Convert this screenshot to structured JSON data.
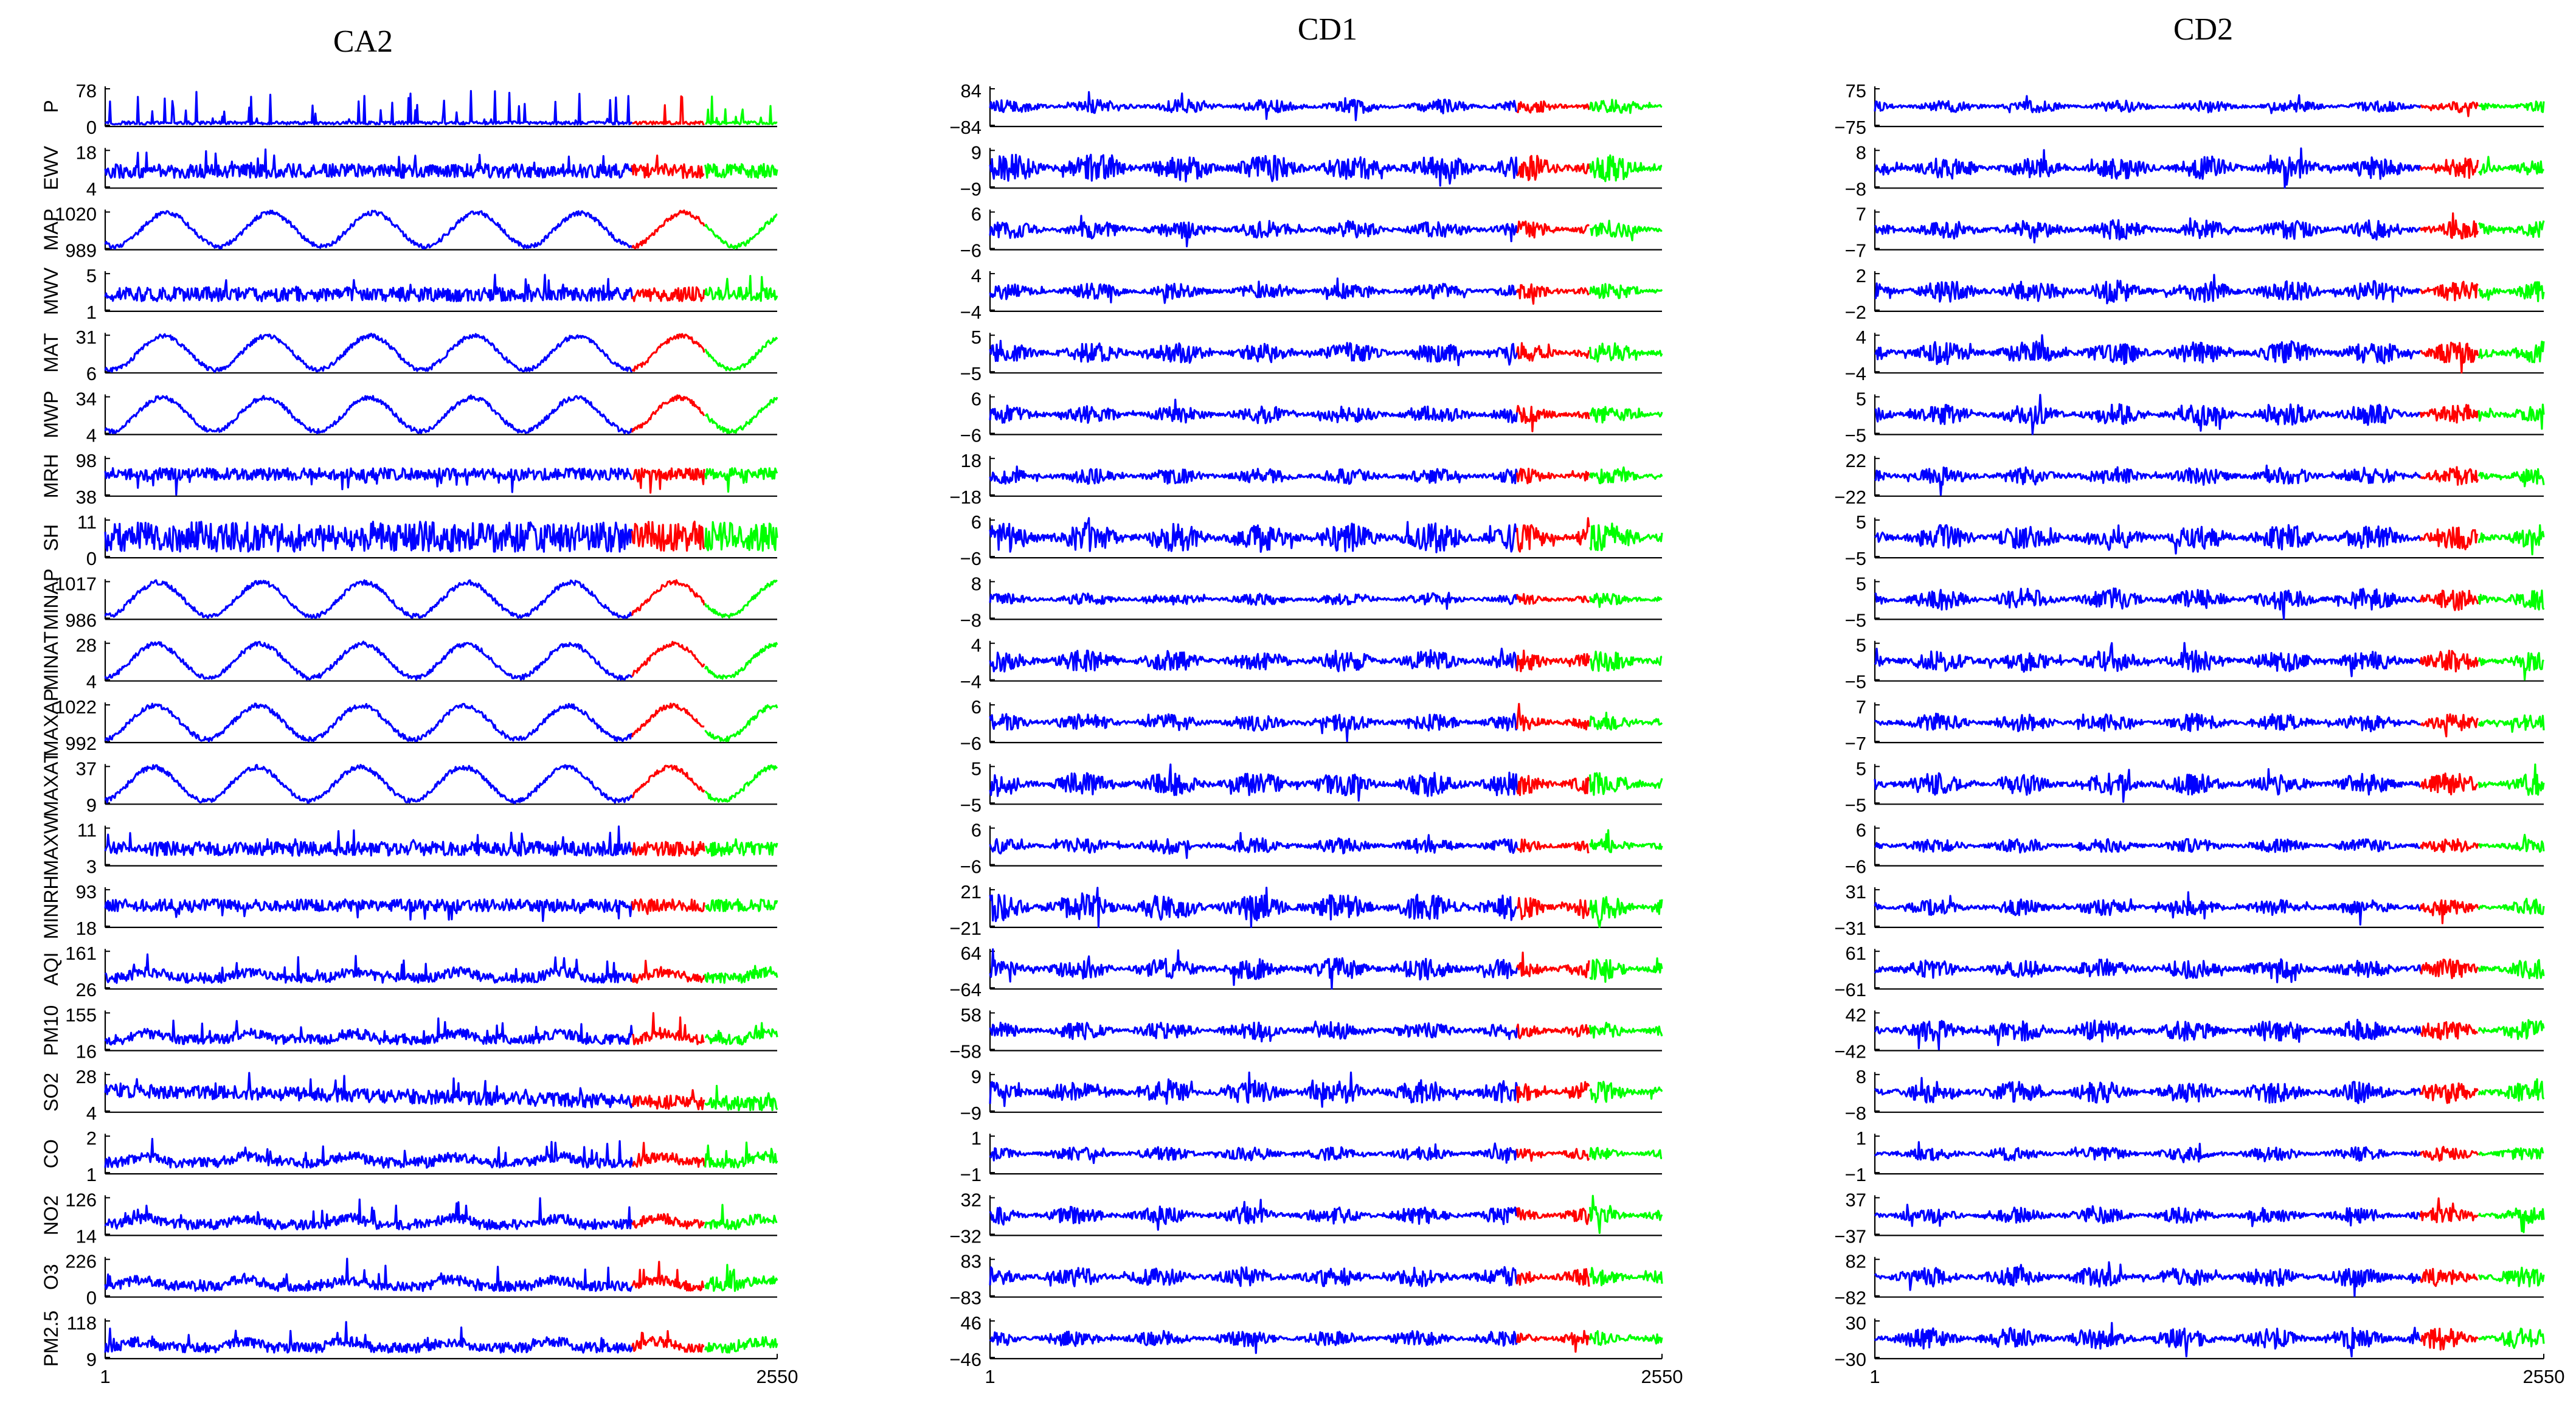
{
  "chart_data": [
    {
      "type": "line",
      "title": "CA2",
      "x_range": [
        1,
        2550
      ],
      "x_ticks": [
        "1",
        "2550"
      ],
      "segments": {
        "train_end": 2000,
        "val_end": 2275
      },
      "series_colors": {
        "train": "#0000ff",
        "validation": "#ff0000",
        "test": "#00ff00"
      },
      "rows": [
        {
          "label": "P",
          "ymax": "78",
          "ymin": "0",
          "kind": "spiky"
        },
        {
          "label": "EWV",
          "ymax": "18",
          "ymin": "4",
          "kind": "noisy"
        },
        {
          "label": "MAP",
          "ymax": "1020",
          "ymin": "989",
          "kind": "seasonal"
        },
        {
          "label": "MWV",
          "ymax": "5",
          "ymin": "1",
          "kind": "noisy"
        },
        {
          "label": "MAT",
          "ymax": "31",
          "ymin": "6",
          "kind": "seasonal"
        },
        {
          "label": "MWP",
          "ymax": "34",
          "ymin": "4",
          "kind": "seasonal"
        },
        {
          "label": "MRH",
          "ymax": "98",
          "ymin": "38",
          "kind": "noisy_high"
        },
        {
          "label": "SH",
          "ymax": "11",
          "ymin": "0",
          "kind": "dense"
        },
        {
          "label": "MINAP",
          "ymax": "1017",
          "ymin": "986",
          "kind": "seasonal"
        },
        {
          "label": "MINAT",
          "ymax": "28",
          "ymin": "4",
          "kind": "seasonal"
        },
        {
          "label": "MAXAP",
          "ymax": "1022",
          "ymin": "992",
          "kind": "seasonal"
        },
        {
          "label": "MAXAT",
          "ymax": "37",
          "ymin": "9",
          "kind": "seasonal"
        },
        {
          "label": "MAXW",
          "ymax": "11",
          "ymin": "3",
          "kind": "noisy"
        },
        {
          "label": "MINRH",
          "ymax": "93",
          "ymin": "18",
          "kind": "noisy_high"
        },
        {
          "label": "AQI",
          "ymax": "161",
          "ymin": "26",
          "kind": "pollutant"
        },
        {
          "label": "PM10",
          "ymax": "155",
          "ymin": "16",
          "kind": "pollutant"
        },
        {
          "label": "SO2",
          "ymax": "28",
          "ymin": "4",
          "kind": "decay"
        },
        {
          "label": "CO",
          "ymax": "2",
          "ymin": "1",
          "kind": "pollutant"
        },
        {
          "label": "NO2",
          "ymax": "126",
          "ymin": "14",
          "kind": "pollutant"
        },
        {
          "label": "O3",
          "ymax": "226",
          "ymin": "0",
          "kind": "pollutant"
        },
        {
          "label": "PM2.5",
          "ymax": "118",
          "ymin": "9",
          "kind": "pollutant"
        }
      ]
    },
    {
      "type": "line",
      "title": "CD1",
      "x_range": [
        1,
        2550
      ],
      "x_ticks": [
        "1",
        "2550"
      ],
      "segments": {
        "train_end": 2000,
        "val_end": 2275
      },
      "series_colors": {
        "train": "#0000ff",
        "validation": "#ff0000",
        "test": "#00ff00"
      },
      "rows": [
        {
          "ymax": "84",
          "ymin": "−84",
          "amp": 0.35
        },
        {
          "ymax": "9",
          "ymin": "−9",
          "amp": 0.7
        },
        {
          "ymax": "6",
          "ymin": "−6",
          "amp": 0.45
        },
        {
          "ymax": "4",
          "ymin": "−4",
          "amp": 0.4
        },
        {
          "ymax": "5",
          "ymin": "−5",
          "amp": 0.5
        },
        {
          "ymax": "6",
          "ymin": "−6",
          "amp": 0.45
        },
        {
          "ymax": "18",
          "ymin": "−18",
          "amp": 0.4
        },
        {
          "ymax": "6",
          "ymin": "−6",
          "amp": 0.75
        },
        {
          "ymax": "8",
          "ymin": "−8",
          "amp": 0.3
        },
        {
          "ymax": "4",
          "ymin": "−4",
          "amp": 0.55
        },
        {
          "ymax": "6",
          "ymin": "−6",
          "amp": 0.45
        },
        {
          "ymax": "5",
          "ymin": "−5",
          "amp": 0.6
        },
        {
          "ymax": "6",
          "ymin": "−6",
          "amp": 0.4
        },
        {
          "ymax": "21",
          "ymin": "−21",
          "amp": 0.7
        },
        {
          "ymax": "64",
          "ymin": "−64",
          "amp": 0.55
        },
        {
          "ymax": "58",
          "ymin": "−58",
          "amp": 0.45
        },
        {
          "ymax": "9",
          "ymin": "−9",
          "amp": 0.6
        },
        {
          "ymax": "1",
          "ymin": "−1",
          "amp": 0.35
        },
        {
          "ymax": "32",
          "ymin": "−32",
          "amp": 0.45
        },
        {
          "ymax": "83",
          "ymin": "−83",
          "amp": 0.5
        },
        {
          "ymax": "46",
          "ymin": "−46",
          "amp": 0.4
        }
      ]
    },
    {
      "type": "line",
      "title": "CD2",
      "x_range": [
        1,
        2550
      ],
      "x_ticks": [
        "1",
        "2550"
      ],
      "segments": {
        "train_end": 2080,
        "val_end": 2300
      },
      "series_colors": {
        "train": "#0000ff",
        "validation": "#ff0000",
        "test": "#00ff00"
      },
      "rows": [
        {
          "ymax": "75",
          "ymin": "−75",
          "amp": 0.3
        },
        {
          "ymax": "8",
          "ymin": "−8",
          "amp": 0.55
        },
        {
          "ymax": "7",
          "ymin": "−7",
          "amp": 0.5
        },
        {
          "ymax": "2",
          "ymin": "−2",
          "amp": 0.55
        },
        {
          "ymax": "4",
          "ymin": "−4",
          "amp": 0.6
        },
        {
          "ymax": "5",
          "ymin": "−5",
          "amp": 0.55
        },
        {
          "ymax": "22",
          "ymin": "−22",
          "amp": 0.45
        },
        {
          "ymax": "5",
          "ymin": "−5",
          "amp": 0.65
        },
        {
          "ymax": "5",
          "ymin": "−5",
          "amp": 0.55
        },
        {
          "ymax": "5",
          "ymin": "−5",
          "amp": 0.55
        },
        {
          "ymax": "7",
          "ymin": "−7",
          "amp": 0.45
        },
        {
          "ymax": "5",
          "ymin": "−5",
          "amp": 0.55
        },
        {
          "ymax": "6",
          "ymin": "−6",
          "amp": 0.35
        },
        {
          "ymax": "31",
          "ymin": "−31",
          "amp": 0.4
        },
        {
          "ymax": "61",
          "ymin": "−61",
          "amp": 0.5
        },
        {
          "ymax": "42",
          "ymin": "−42",
          "amp": 0.55
        },
        {
          "ymax": "8",
          "ymin": "−8",
          "amp": 0.55
        },
        {
          "ymax": "1",
          "ymin": "−1",
          "amp": 0.35
        },
        {
          "ymax": "37",
          "ymin": "−37",
          "amp": 0.4
        },
        {
          "ymax": "82",
          "ymin": "−82",
          "amp": 0.5
        },
        {
          "ymax": "30",
          "ymin": "−30",
          "amp": 0.55
        }
      ]
    }
  ]
}
